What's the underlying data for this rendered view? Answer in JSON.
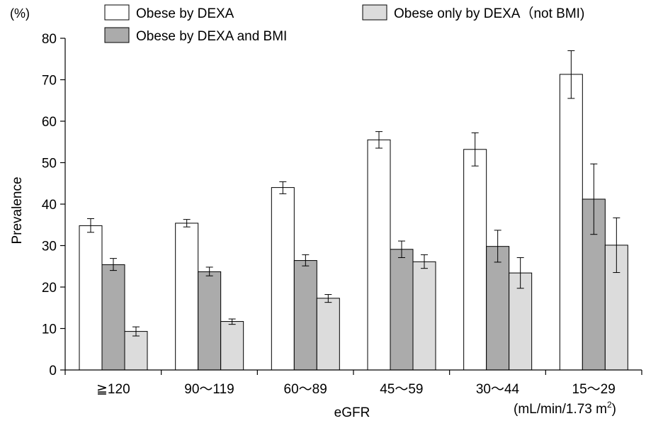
{
  "chart_data": {
    "type": "bar",
    "title": "",
    "xlabel": "eGFR",
    "ylabel": "Prevalence",
    "y_unit": "(%)",
    "x_unit_prefix": "(mL/min/1.73 m",
    "x_unit_sup": "2",
    "x_unit_suffix": ")",
    "ylim": [
      0,
      80
    ],
    "yticks": [
      0,
      10,
      20,
      30,
      40,
      50,
      60,
      70,
      80
    ],
    "grid": false,
    "legend_position": "top",
    "categories": [
      "≧120",
      "90～119",
      "60～89",
      "45～59",
      "30～44",
      "15～29"
    ],
    "series": [
      {
        "name": "Obese by DEXA",
        "color": "#ffffff",
        "values": [
          34.8,
          35.4,
          44.0,
          55.5,
          53.2,
          71.3
        ],
        "err_low": [
          33.2,
          34.5,
          42.5,
          53.5,
          49.2,
          65.5
        ],
        "err_high": [
          36.5,
          36.3,
          45.4,
          57.5,
          57.2,
          77.0
        ]
      },
      {
        "name": "Obese by DEXA and BMI",
        "color": "#ababab",
        "values": [
          25.4,
          23.7,
          26.4,
          29.1,
          29.8,
          41.2
        ],
        "err_low": [
          24.0,
          22.7,
          25.1,
          27.1,
          26.0,
          32.7
        ],
        "err_high": [
          26.9,
          24.8,
          27.8,
          31.1,
          33.7,
          49.7
        ]
      },
      {
        "name": "Obese only by DEXA（not BMI)",
        "color": "#dcdcdc",
        "values": [
          9.3,
          11.7,
          17.3,
          26.1,
          23.4,
          30.1
        ],
        "err_low": [
          8.2,
          11.0,
          16.3,
          24.5,
          19.7,
          23.5
        ],
        "err_high": [
          10.4,
          12.3,
          18.2,
          27.8,
          27.1,
          36.7
        ]
      }
    ]
  }
}
